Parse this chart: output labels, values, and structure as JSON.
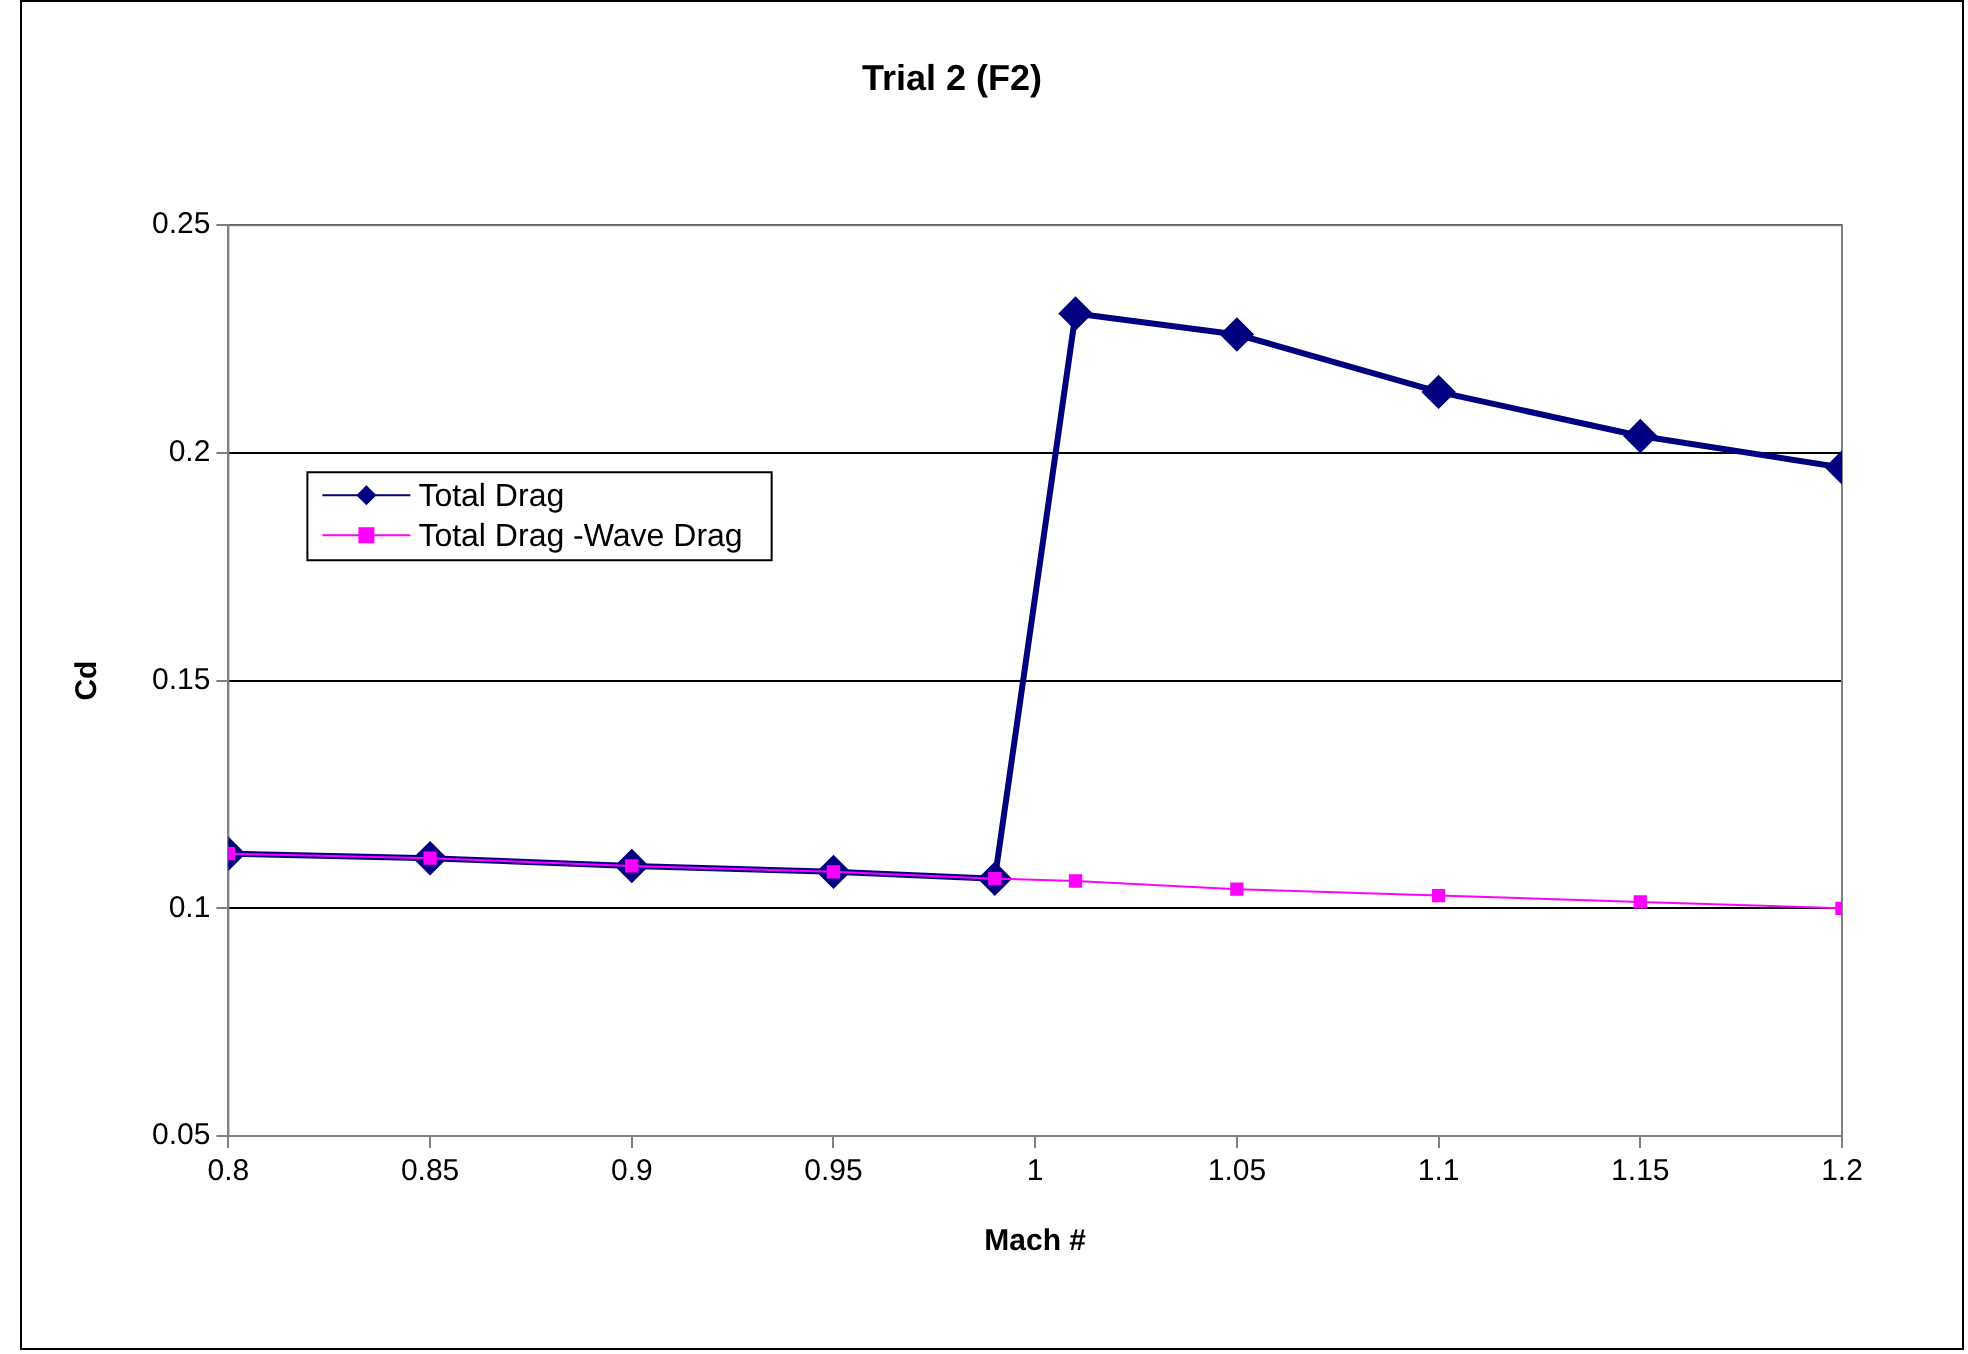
{
  "chart_data": {
    "type": "line",
    "title": "Trial 2 (F2)",
    "xlabel": "Mach #",
    "ylabel": "Cd",
    "x": [
      0.8,
      0.85,
      0.9,
      0.95,
      0.99,
      1.01,
      1.05,
      1.1,
      1.15,
      1.2
    ],
    "series": [
      {
        "name": "Total Drag",
        "color": "#000080",
        "marker": "diamond",
        "values": [
          0.112,
          0.111,
          0.1093,
          0.108,
          0.1065,
          0.2306,
          0.226,
          0.2134,
          0.2037,
          0.1968
        ]
      },
      {
        "name": "Total Drag -Wave Drag",
        "color": "#ff00ff",
        "marker": "square",
        "values": [
          0.112,
          0.111,
          0.1093,
          0.108,
          0.1065,
          0.106,
          0.1042,
          0.1028,
          0.1014,
          0.1
        ]
      }
    ],
    "xlim": [
      0.8,
      1.2
    ],
    "xticks": [
      0.8,
      0.85,
      0.9,
      0.95,
      1,
      1.05,
      1.1,
      1.15,
      1.2
    ],
    "ylim": [
      0.05,
      0.25
    ],
    "yticks": [
      0.05,
      0.1,
      0.15,
      0.2,
      0.25
    ],
    "grid": "y",
    "legend": "top left",
    "line_style": "solid"
  }
}
